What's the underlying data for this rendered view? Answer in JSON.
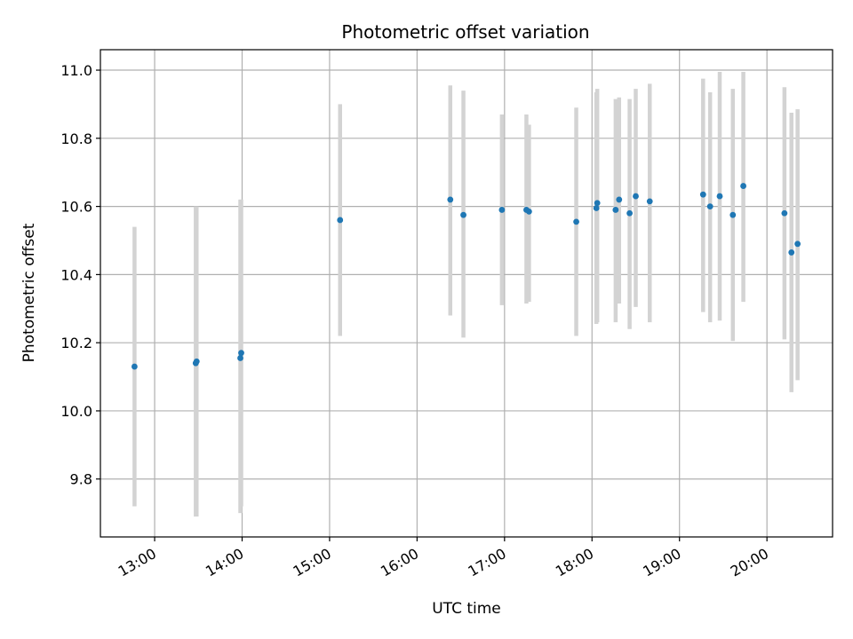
{
  "chart_data": {
    "type": "scatter",
    "title": "Photometric offset variation",
    "xlabel": "UTC time",
    "ylabel": "Photometric offset",
    "x_unit": "hour",
    "xlim": [
      12.38,
      20.75
    ],
    "ylim": [
      9.63,
      11.06
    ],
    "x_ticks": [
      {
        "value": 13,
        "label": "13:00"
      },
      {
        "value": 14,
        "label": "14:00"
      },
      {
        "value": 15,
        "label": "15:00"
      },
      {
        "value": 16,
        "label": "16:00"
      },
      {
        "value": 17,
        "label": "17:00"
      },
      {
        "value": 18,
        "label": "18:00"
      },
      {
        "value": 19,
        "label": "19:00"
      },
      {
        "value": 20,
        "label": "20:00"
      }
    ],
    "y_ticks": [
      {
        "value": 9.8,
        "label": "9.8"
      },
      {
        "value": 10.0,
        "label": "10.0"
      },
      {
        "value": 10.2,
        "label": "10.2"
      },
      {
        "value": 10.4,
        "label": "10.4"
      },
      {
        "value": 10.6,
        "label": "10.6"
      },
      {
        "value": 10.8,
        "label": "10.8"
      },
      {
        "value": 11.0,
        "label": "11.0"
      }
    ],
    "grid": true,
    "point_color": "#1f77b4",
    "errorbar_color": "#d3d3d3",
    "points": [
      {
        "x": 12.77,
        "y": 10.13,
        "low": 9.72,
        "high": 10.54
      },
      {
        "x": 13.47,
        "y": 10.14,
        "low": 9.69,
        "high": 10.6
      },
      {
        "x": 13.48,
        "y": 10.145,
        "low": 9.69,
        "high": 10.6
      },
      {
        "x": 13.98,
        "y": 10.155,
        "low": 9.7,
        "high": 10.62
      },
      {
        "x": 13.99,
        "y": 10.17,
        "low": 9.72,
        "high": 10.62
      },
      {
        "x": 15.12,
        "y": 10.56,
        "low": 10.22,
        "high": 10.9
      },
      {
        "x": 16.38,
        "y": 10.62,
        "low": 10.28,
        "high": 10.955
      },
      {
        "x": 16.53,
        "y": 10.575,
        "low": 10.215,
        "high": 10.94
      },
      {
        "x": 16.97,
        "y": 10.59,
        "low": 10.31,
        "high": 10.87
      },
      {
        "x": 17.25,
        "y": 10.59,
        "low": 10.315,
        "high": 10.87
      },
      {
        "x": 17.28,
        "y": 10.585,
        "low": 10.32,
        "high": 10.84
      },
      {
        "x": 17.82,
        "y": 10.555,
        "low": 10.22,
        "high": 10.89
      },
      {
        "x": 18.05,
        "y": 10.595,
        "low": 10.255,
        "high": 10.935
      },
      {
        "x": 18.06,
        "y": 10.61,
        "low": 10.26,
        "high": 10.945
      },
      {
        "x": 18.27,
        "y": 10.59,
        "low": 10.26,
        "high": 10.915
      },
      {
        "x": 18.31,
        "y": 10.62,
        "low": 10.315,
        "high": 10.92
      },
      {
        "x": 18.43,
        "y": 10.58,
        "low": 10.24,
        "high": 10.915
      },
      {
        "x": 18.5,
        "y": 10.63,
        "low": 10.305,
        "high": 10.945
      },
      {
        "x": 18.66,
        "y": 10.615,
        "low": 10.26,
        "high": 10.96
      },
      {
        "x": 19.27,
        "y": 10.635,
        "low": 10.29,
        "high": 10.975
      },
      {
        "x": 19.35,
        "y": 10.6,
        "low": 10.26,
        "high": 10.935
      },
      {
        "x": 19.46,
        "y": 10.63,
        "low": 10.265,
        "high": 10.995
      },
      {
        "x": 19.61,
        "y": 10.575,
        "low": 10.205,
        "high": 10.945
      },
      {
        "x": 19.73,
        "y": 10.66,
        "low": 10.32,
        "high": 10.995
      },
      {
        "x": 20.2,
        "y": 10.58,
        "low": 10.21,
        "high": 10.95
      },
      {
        "x": 20.28,
        "y": 10.465,
        "low": 10.055,
        "high": 10.875
      },
      {
        "x": 20.35,
        "y": 10.49,
        "low": 10.09,
        "high": 10.885
      }
    ]
  }
}
